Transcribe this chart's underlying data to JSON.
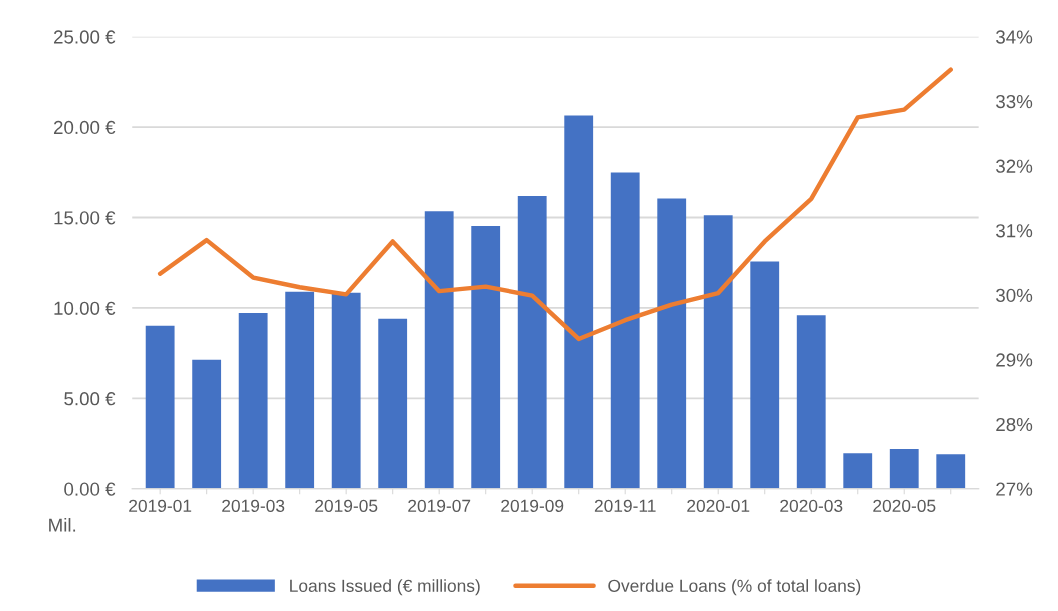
{
  "chart_data": {
    "type": "bar",
    "categories": [
      "2019-01",
      null,
      "2019-03",
      null,
      "2019-05",
      null,
      "2019-07",
      null,
      "2019-09",
      null,
      "2019-11",
      null,
      "2020-01",
      null,
      "2020-03",
      null,
      "2020-05",
      null
    ],
    "series": [
      {
        "name": "Loans Issued (€ millions)",
        "color": "#4472c4",
        "values": [
          9.01,
          7.13,
          9.72,
          10.9,
          10.84,
          9.4,
          15.35,
          14.53,
          16.19,
          20.64,
          17.49,
          16.05,
          15.13,
          12.57,
          9.59,
          1.97,
          2.2,
          1.91
        ]
      },
      {
        "name": "Overdue Loans (% of total loans)",
        "type": "line",
        "axis": "y2",
        "color": "#ed7d31",
        "values": [
          30.33,
          30.85,
          30.27,
          30.12,
          30.01,
          30.83,
          30.06,
          30.13,
          29.99,
          29.32,
          29.61,
          29.85,
          30.03,
          30.83,
          31.49,
          32.75,
          32.87,
          33.49
        ]
      }
    ],
    "ylim": [
      0,
      25
    ],
    "yticks": [
      {
        "value": 0,
        "label": "0.00 €"
      },
      {
        "value": 5,
        "label": "5.00 €"
      },
      {
        "value": 10,
        "label": "10.00 €"
      },
      {
        "value": 15,
        "label": "15.00 €"
      },
      {
        "value": 20,
        "label": "20.00 €"
      },
      {
        "value": 25,
        "label": "25.00 €"
      }
    ],
    "y2lim": [
      27,
      34
    ],
    "y2ticks": [
      {
        "value": 27,
        "label": "27%"
      },
      {
        "value": 28,
        "label": "28%"
      },
      {
        "value": 29,
        "label": "29%"
      },
      {
        "value": 30,
        "label": "30%"
      },
      {
        "value": 31,
        "label": "31%"
      },
      {
        "value": 32,
        "label": "32%"
      },
      {
        "value": 33,
        "label": "33%"
      },
      {
        "value": 34,
        "label": "34%"
      }
    ],
    "annotations": [
      "Mil."
    ],
    "grid": "y",
    "legend": "bottom",
    "marker": "none",
    "line_style": "solid"
  }
}
